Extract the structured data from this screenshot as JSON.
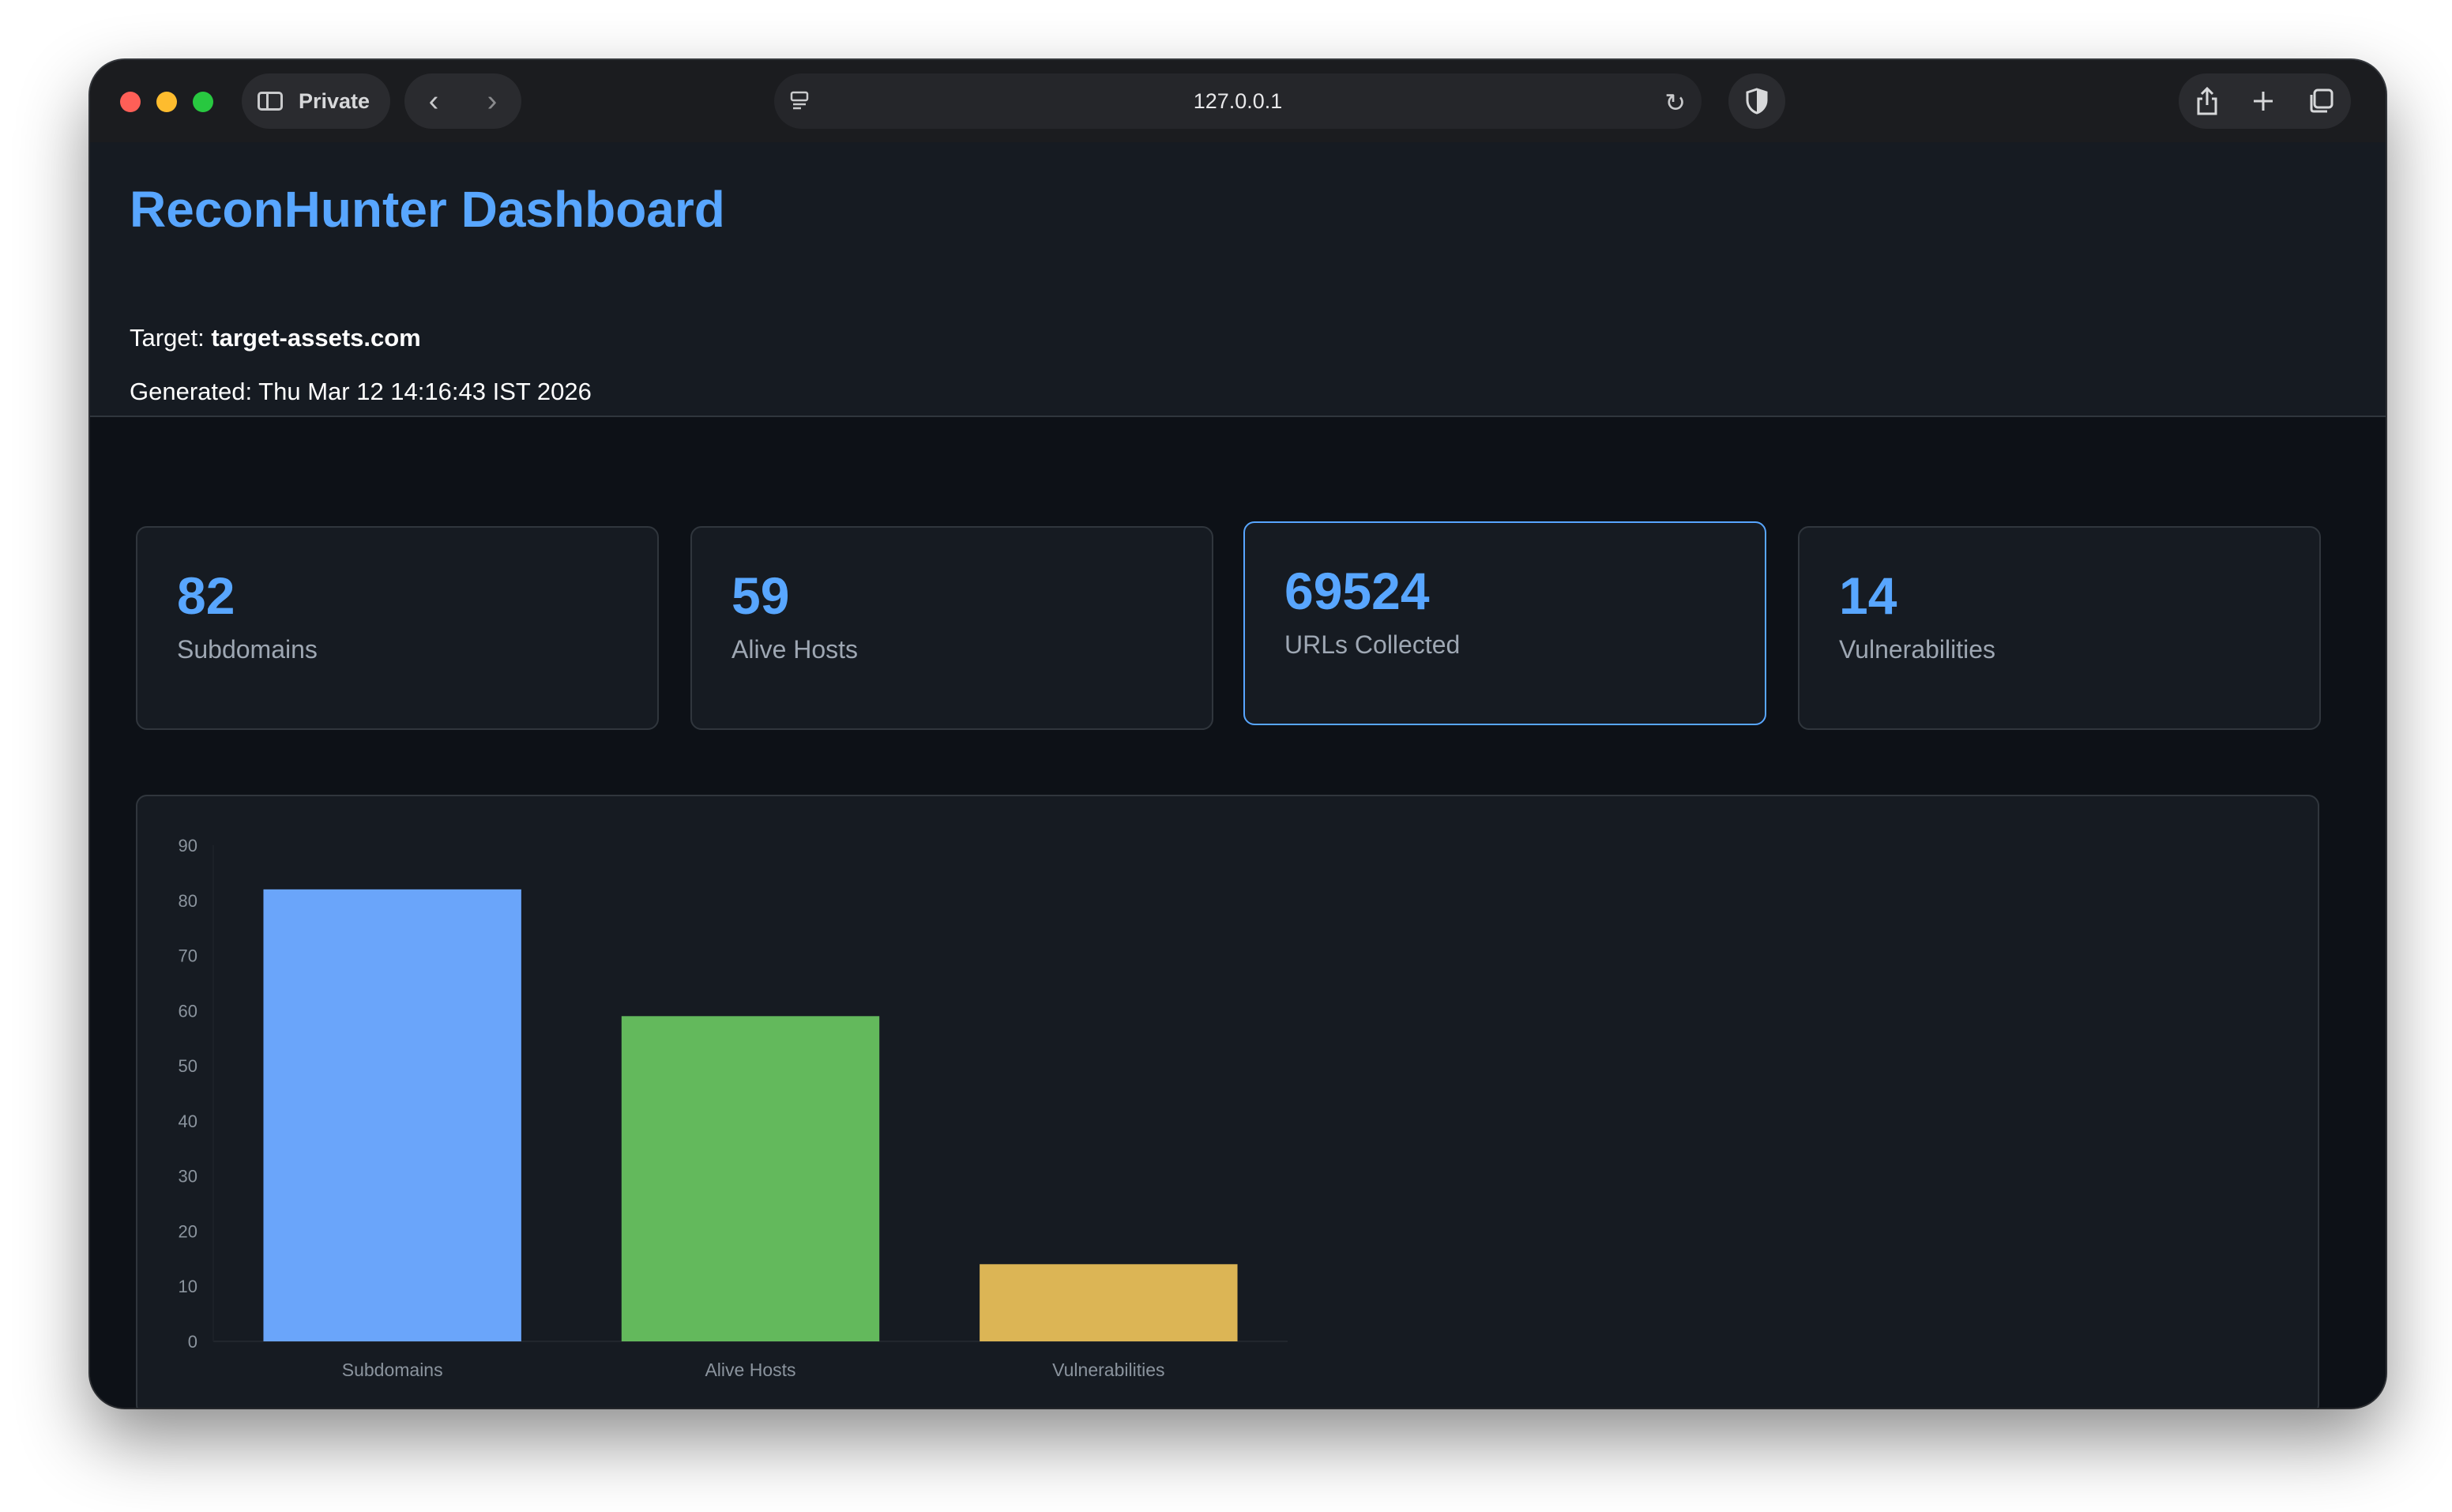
{
  "browser": {
    "mode_label": "Private",
    "url": "127.0.0.1",
    "icons": [
      "sidebar-icon",
      "back-icon",
      "forward-icon",
      "site-settings-icon",
      "reload-icon",
      "shield-icon",
      "share-icon",
      "new-tab-icon",
      "tabs-overview-icon"
    ]
  },
  "header": {
    "title": "ReconHunter Dashboard",
    "target_label": "Target:",
    "target_value": "target-assets.com",
    "generated_label": "Generated:",
    "generated_value": "Thu Mar 12 14:16:43 IST 2026"
  },
  "stats": [
    {
      "value": "82",
      "label": "Subdomains"
    },
    {
      "value": "59",
      "label": "Alive Hosts"
    },
    {
      "value": "69524",
      "label": "URLs Collected"
    },
    {
      "value": "14",
      "label": "Vulnerabilities"
    }
  ],
  "colors": {
    "accent": "#58a6ff",
    "bar_subdomains": "#6aa5fa",
    "bar_alive": "#63b95c",
    "bar_vulns": "#dcb555"
  },
  "chart_data": {
    "type": "bar",
    "categories": [
      "Subdomains",
      "Alive Hosts",
      "Vulnerabilities"
    ],
    "values": [
      82,
      59,
      14
    ],
    "colors": [
      "#6aa5fa",
      "#63b95c",
      "#dcb555"
    ],
    "yticks": [
      "0",
      "10",
      "20",
      "30",
      "40",
      "50",
      "60",
      "70",
      "80",
      "90"
    ],
    "ylim": [
      0,
      90
    ],
    "grid": false,
    "legend": "none"
  }
}
